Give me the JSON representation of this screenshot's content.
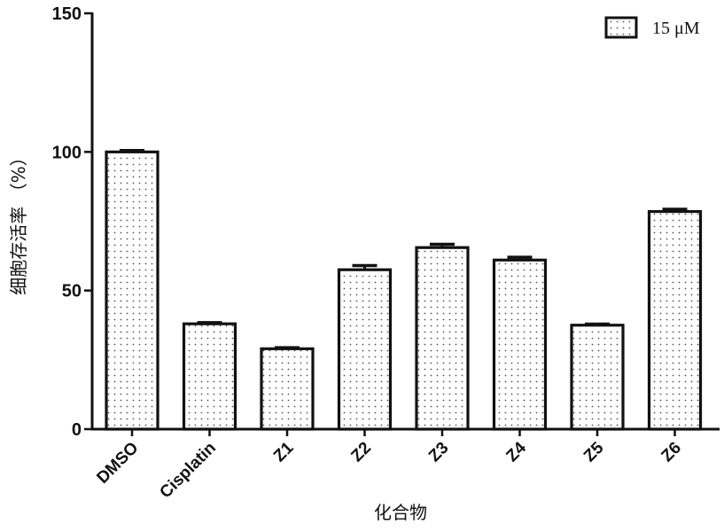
{
  "chart_data": {
    "type": "bar",
    "categories": [
      "DMSO",
      "Cisplatin",
      "Z1",
      "Z2",
      "Z3",
      "Z4",
      "Z5",
      "Z6"
    ],
    "series": [
      {
        "name": "15 μM",
        "values": [
          100,
          38,
          29,
          57.5,
          65.5,
          61,
          37.5,
          78.5
        ],
        "errors": [
          0.5,
          0.4,
          0.4,
          1.5,
          1.2,
          1.0,
          0.4,
          0.8
        ]
      }
    ],
    "ylim": [
      0,
      150
    ],
    "yticks": [
      0,
      50,
      100,
      150
    ],
    "ylabel": "细胞存活率 （%）",
    "xlabel": "化合物",
    "title": "",
    "grid": false,
    "legend_position": "top-right",
    "bar_fill": "dotted",
    "colors": {
      "bar_outline": "#111111",
      "bar_fill": "#ffffff",
      "dot": "#555555"
    }
  }
}
